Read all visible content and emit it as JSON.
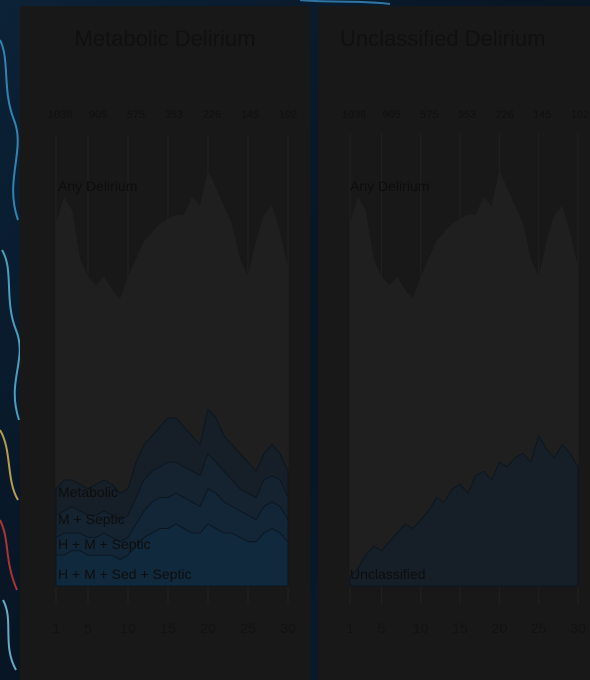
{
  "chart_data": [
    {
      "type": "area",
      "title": "Metabolic Delirium",
      "x_ticks": [
        1,
        5,
        10,
        15,
        20,
        25,
        30
      ],
      "top_ticks": [
        "1038",
        "905",
        "575",
        "353",
        "226",
        "145",
        "102"
      ],
      "xlim": [
        1,
        30
      ],
      "ylim": [
        0,
        100
      ],
      "grid": true,
      "series": [
        {
          "name": "Any Delirium",
          "values": [
            82,
            88,
            85,
            74,
            70,
            68,
            70,
            67,
            65,
            70,
            74,
            78,
            80,
            82,
            83,
            84,
            84,
            88,
            86,
            94,
            90,
            86,
            82,
            74,
            70,
            78,
            84,
            86,
            80,
            72
          ]
        },
        {
          "name": "Metabolic",
          "values": [
            22,
            24,
            24,
            23,
            22,
            23,
            24,
            23,
            21,
            22,
            28,
            32,
            34,
            36,
            38,
            38,
            36,
            34,
            32,
            40,
            38,
            34,
            32,
            30,
            28,
            26,
            30,
            32,
            30,
            26
          ]
        },
        {
          "name": "M + Septic",
          "values": [
            16,
            17,
            18,
            17,
            16,
            16,
            17,
            16,
            15,
            16,
            20,
            24,
            26,
            27,
            28,
            28,
            27,
            26,
            25,
            30,
            28,
            26,
            24,
            22,
            21,
            20,
            24,
            25,
            24,
            20
          ]
        },
        {
          "name": "H + M + Septic",
          "values": [
            11,
            12,
            12,
            12,
            11,
            11,
            12,
            11,
            10,
            11,
            14,
            17,
            19,
            20,
            20,
            21,
            20,
            19,
            18,
            22,
            21,
            19,
            18,
            17,
            16,
            15,
            18,
            19,
            18,
            15
          ]
        },
        {
          "name": "H + M + Sed + Septic",
          "values": [
            7,
            7,
            8,
            8,
            7,
            7,
            7,
            7,
            6,
            7,
            9,
            11,
            12,
            13,
            13,
            14,
            13,
            12,
            12,
            14,
            13,
            12,
            12,
            11,
            10,
            10,
            12,
            13,
            12,
            10
          ]
        }
      ],
      "colors": {
        "any": "#272727",
        "metabolic": "#1c2530",
        "m_septic": "#1a2a3a",
        "h_m_septic": "#172f44",
        "h_m_sed_septic": "#15324b"
      }
    },
    {
      "type": "area",
      "title": "Unclassified Delirium",
      "x_ticks": [
        1,
        5,
        10,
        15,
        20,
        25,
        30
      ],
      "top_ticks": [
        "1038",
        "905",
        "575",
        "353",
        "226",
        "145",
        "102"
      ],
      "xlim": [
        1,
        30
      ],
      "ylim": [
        0,
        100
      ],
      "grid": true,
      "series": [
        {
          "name": "Any Delirium",
          "values": [
            82,
            88,
            85,
            74,
            70,
            68,
            70,
            67,
            65,
            70,
            74,
            78,
            80,
            82,
            83,
            84,
            84,
            88,
            86,
            94,
            90,
            86,
            82,
            74,
            70,
            78,
            84,
            86,
            80,
            72
          ]
        },
        {
          "name": "Unclassified",
          "values": [
            2,
            4,
            7,
            9,
            8,
            10,
            12,
            14,
            13,
            15,
            17,
            20,
            19,
            22,
            23,
            21,
            25,
            26,
            24,
            28,
            27,
            29,
            30,
            28,
            34,
            31,
            29,
            32,
            30,
            27
          ]
        }
      ],
      "colors": {
        "any": "#272727",
        "unclassified": "#1b2731"
      }
    }
  ]
}
